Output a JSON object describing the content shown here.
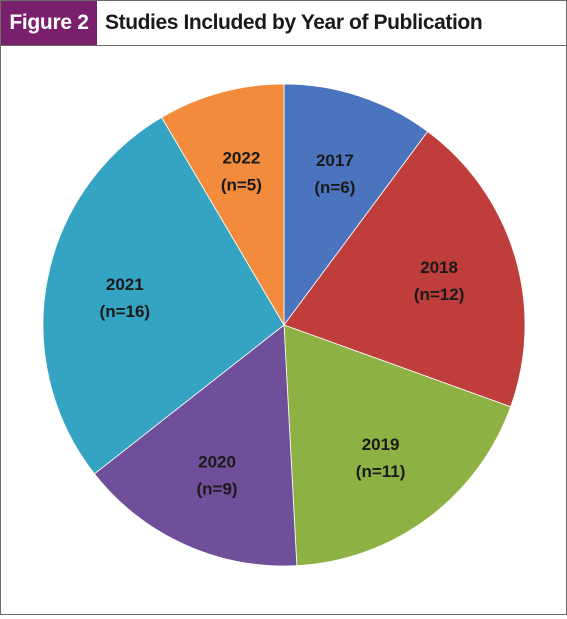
{
  "header": {
    "figure_label": "Figure 2",
    "title": "Studies Included by Year of Publication"
  },
  "chart_data": {
    "type": "pie",
    "title": "Studies Included by Year of Publication",
    "start": "12 o'clock",
    "direction": "clockwise",
    "slices": [
      {
        "label": "2017",
        "count_label": "(n=6)",
        "value": 6,
        "color": "#4a74bd"
      },
      {
        "label": "2018",
        "count_label": "(n=12)",
        "value": 12,
        "color": "#bf3d3b"
      },
      {
        "label": "2019",
        "count_label": "(n=11)",
        "value": 11,
        "color": "#8db243"
      },
      {
        "label": "2020",
        "count_label": "(n=9)",
        "value": 9,
        "color": "#6f4f9a"
      },
      {
        "label": "2021",
        "count_label": "(n=16)",
        "value": 16,
        "color": "#35a4c2"
      },
      {
        "label": "2022",
        "count_label": "(n=5)",
        "value": 5,
        "color": "#f28c3c"
      }
    ]
  }
}
